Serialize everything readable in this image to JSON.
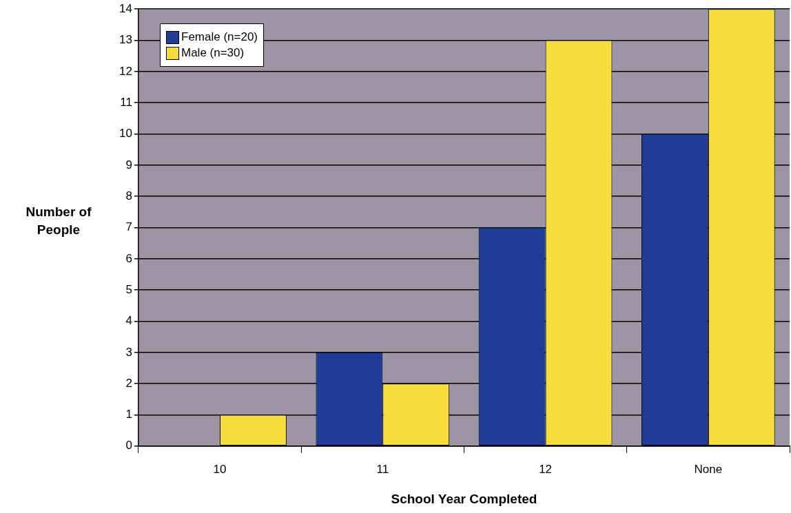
{
  "chart_data": {
    "type": "bar",
    "xlabel": "School Year Completed",
    "ylabel": "Number of People",
    "categories": [
      "10",
      "11",
      "12",
      "None"
    ],
    "series": [
      {
        "name": "Female (n=20)",
        "color": "#1f3c98",
        "values": [
          0,
          3,
          7,
          10
        ]
      },
      {
        "name": "Male (n=30)",
        "color": "#f6dc3c",
        "values": [
          1,
          2,
          13,
          14
        ]
      }
    ],
    "ylim": [
      0,
      14
    ],
    "yticks": [
      0,
      1,
      2,
      3,
      4,
      5,
      6,
      7,
      8,
      9,
      10,
      11,
      12,
      13,
      14
    ],
    "grid": "y",
    "legend": "top left"
  }
}
